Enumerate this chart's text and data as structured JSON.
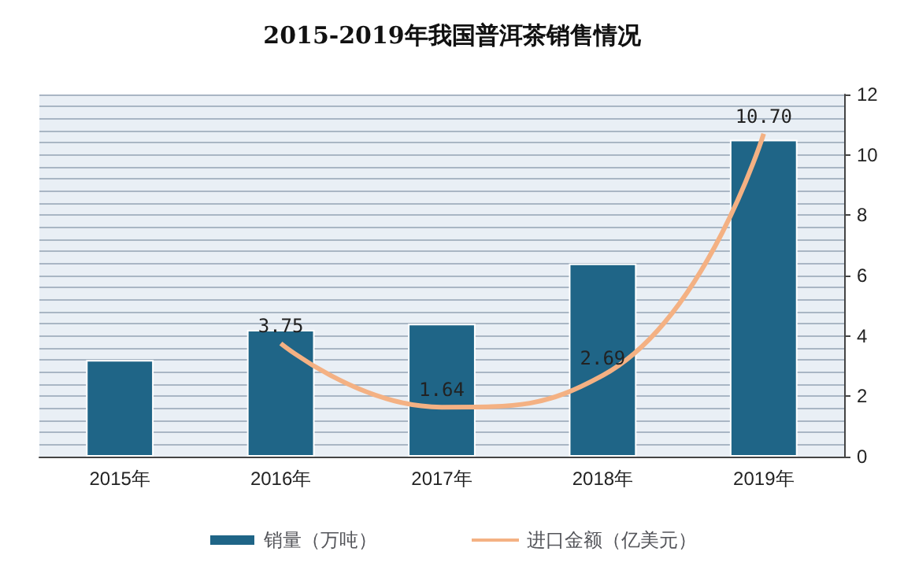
{
  "chart_data": {
    "type": "bar",
    "title": "2015-2019年我国普洱茶销售情况",
    "categories": [
      "2015年",
      "2016年",
      "2017年",
      "2018年",
      "2019年"
    ],
    "series": [
      {
        "name": "销量（万吨）",
        "color": "#1f6587",
        "values": [
          3.2,
          4.2,
          4.4,
          6.4,
          10.5
        ]
      },
      {
        "name": "进口金额（亿美元）",
        "type": "line",
        "color": "#f4b183",
        "values": [
          null,
          3.75,
          1.64,
          2.69,
          10.7
        ],
        "value_labels": [
          null,
          "3.75",
          "1.64",
          "2.69",
          "10.70"
        ],
        "marker": "none"
      }
    ],
    "ylim": [
      0,
      12
    ],
    "yticks": [
      0,
      2,
      4,
      6,
      8,
      10,
      12
    ],
    "grid": true,
    "legend": "bottom"
  }
}
